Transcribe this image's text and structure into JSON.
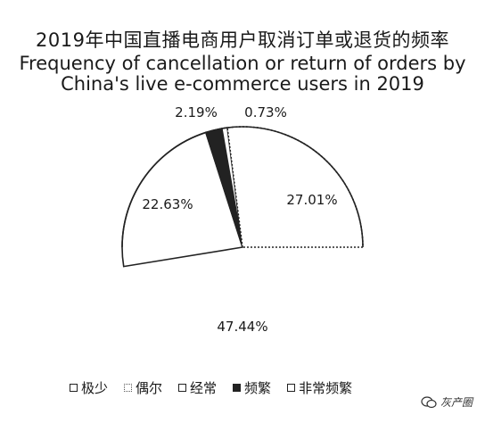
{
  "chart_data": {
    "type": "pie",
    "title_zh": "2019年中国直播电商用户取消订单或退货的频率",
    "title_en_line1": "Frequency of cancellation or return of orders by",
    "title_en_line2": "China's live e-commerce users in 2019",
    "slices": [
      {
        "name": "极少",
        "value": 47.44,
        "label": "47.44%"
      },
      {
        "name": "偶尔",
        "value": 27.01,
        "label": "27.01%"
      },
      {
        "name": "经常",
        "value": 22.63,
        "label": "22.63%"
      },
      {
        "name": "频繁",
        "value": 2.19,
        "label": "2.19%"
      },
      {
        "name": "非常频繁",
        "value": 0.73,
        "label": "0.73%"
      }
    ],
    "start_angle_deg": 180,
    "direction": "clockwise-from-bottom-left",
    "legend_position": "bottom"
  },
  "legend": [
    {
      "label": "极少",
      "style": "outline"
    },
    {
      "label": "偶尔",
      "style": "dotted"
    },
    {
      "label": "经常",
      "style": "outline"
    },
    {
      "label": "频繁",
      "style": "solid"
    },
    {
      "label": "非常频繁",
      "style": "outline"
    }
  ],
  "watermark": {
    "text": "灰产圈",
    "icon": "wechat-icon"
  }
}
